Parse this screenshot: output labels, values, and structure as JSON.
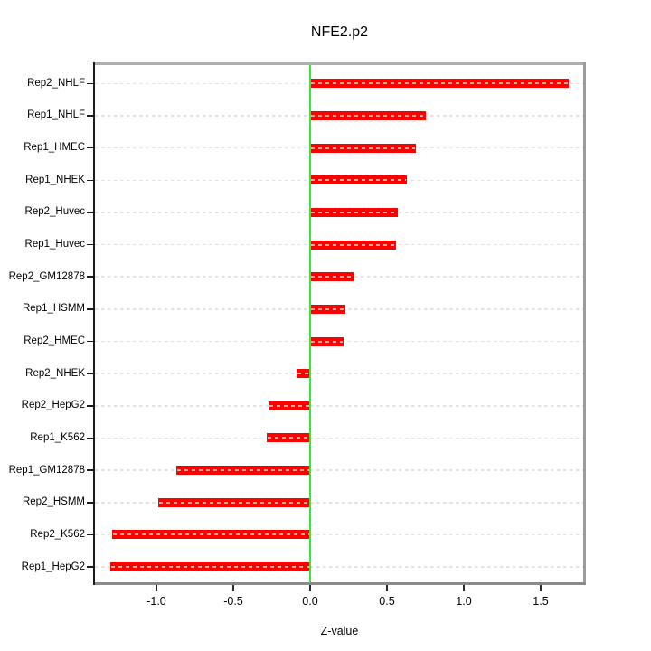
{
  "chart_data": {
    "type": "bar",
    "orientation": "horizontal",
    "title": "NFE2.p2",
    "xlabel": "Z-value",
    "ylabel": "",
    "categories": [
      "Rep2_NHLF",
      "Rep1_NHLF",
      "Rep1_HMEC",
      "Rep1_NHEK",
      "Rep2_Huvec",
      "Rep1_Huvec",
      "Rep2_GM12878",
      "Rep1_HSMM",
      "Rep2_HMEC",
      "Rep2_NHEK",
      "Rep2_HepG2",
      "Rep1_K562",
      "Rep1_GM12878",
      "Rep2_HSMM",
      "Rep2_K562",
      "Rep1_HepG2"
    ],
    "values": [
      1.68,
      0.75,
      0.69,
      0.63,
      0.57,
      0.56,
      0.28,
      0.23,
      0.22,
      -0.09,
      -0.27,
      -0.28,
      -0.87,
      -0.99,
      -1.29,
      -1.3
    ],
    "x_tick_labels": [
      "-1.0",
      "-0.5",
      "0.0",
      "0.5",
      "1.0",
      "1.5"
    ],
    "xlim": [
      -1.41,
      1.79
    ],
    "grid": "horizontal-dashed",
    "legend_position": "none",
    "bar_color": "#ff0000",
    "bar_dash_color": "#ffafaf",
    "zero_line_color": "#35e835",
    "grid_color": "#e2e2e2",
    "tick_color": "#1a1a1a",
    "text_color": "#000000"
  }
}
